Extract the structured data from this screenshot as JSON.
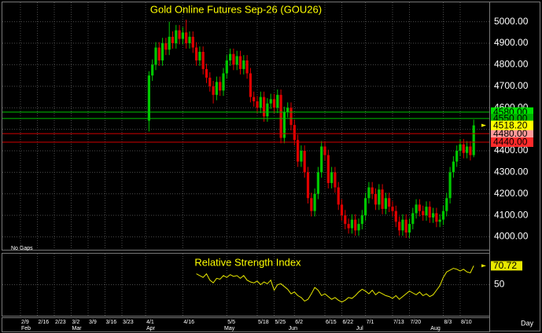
{
  "chart_data": [
    {
      "type": "candlestick",
      "title": "Gold Online Futures Sep-26 (GOU26)",
      "note": "No Gaps",
      "x_label": "Day",
      "categories": [
        "2/9",
        null,
        null,
        null,
        null,
        "2/16",
        null,
        null,
        null,
        null,
        "2/23",
        null,
        null,
        null,
        null,
        "3/2",
        null,
        null,
        null,
        null,
        "3/9",
        null,
        null,
        null,
        null,
        "3/16",
        null,
        null,
        null,
        null,
        "3/23",
        null,
        null,
        null,
        null,
        null,
        null,
        "4/1",
        null,
        null,
        null,
        null,
        null,
        null,
        null,
        null,
        null,
        null,
        "4/16",
        null,
        null,
        null,
        null,
        null,
        null,
        null,
        null,
        null,
        null,
        null,
        null,
        "5/5",
        null,
        null,
        null,
        null,
        null,
        null,
        null,
        null,
        "5/18",
        null,
        null,
        null,
        null,
        "5/25",
        null,
        null,
        null,
        null,
        null,
        "6/2",
        null,
        null,
        null,
        null,
        null,
        null,
        null,
        null,
        "6/15",
        null,
        null,
        null,
        null,
        "6/22",
        null,
        null,
        null,
        null,
        null,
        null,
        "7/1",
        null,
        null,
        null,
        null,
        null,
        null,
        null,
        "7/13",
        null,
        null,
        null,
        null,
        "7/20",
        null,
        null,
        null,
        null,
        null,
        null,
        null,
        null,
        null,
        "8/3",
        null,
        null,
        null,
        null,
        "8/10",
        null,
        null,
        null,
        null
      ],
      "months": [
        "Feb",
        null,
        null,
        null,
        null,
        null,
        null,
        null,
        null,
        null,
        null,
        null,
        null,
        null,
        null,
        "Mar",
        null,
        null,
        null,
        null,
        null,
        null,
        null,
        null,
        null,
        null,
        null,
        null,
        null,
        null,
        null,
        null,
        null,
        null,
        null,
        null,
        null,
        "Apr",
        null,
        null,
        null,
        null,
        null,
        null,
        null,
        null,
        null,
        null,
        null,
        null,
        null,
        null,
        null,
        null,
        null,
        null,
        null,
        null,
        null,
        null,
        "May",
        null,
        null,
        null,
        null,
        null,
        null,
        null,
        null,
        null,
        null,
        null,
        null,
        null,
        null,
        null,
        null,
        null,
        null,
        "Jun",
        null,
        null,
        null,
        null,
        null,
        null,
        null,
        null,
        null,
        null,
        null,
        null,
        null,
        null,
        null,
        null,
        null,
        null,
        null,
        "Jul",
        null,
        null,
        null,
        null,
        null,
        null,
        null,
        null,
        null,
        null,
        null,
        null,
        null,
        null,
        null,
        null,
        null,
        null,
        null,
        null,
        null,
        "Aug",
        null,
        null,
        null,
        null,
        null,
        null,
        null,
        null,
        null
      ],
      "open": [
        null,
        null,
        null,
        null,
        null,
        null,
        null,
        null,
        null,
        null,
        null,
        null,
        null,
        null,
        null,
        null,
        null,
        null,
        null,
        null,
        null,
        null,
        null,
        null,
        null,
        null,
        null,
        null,
        null,
        null,
        null,
        null,
        null,
        null,
        null,
        null,
        null,
        null,
        4540,
        4750,
        4800,
        4880,
        4820,
        4900,
        4870,
        4930,
        4900,
        4960,
        4920,
        4950,
        4900,
        4930,
        4880,
        4820,
        4860,
        4780,
        4740,
        4700,
        4660,
        4720,
        4680,
        4760,
        4820,
        4850,
        4800,
        4840,
        4780,
        4820,
        4760,
        4650,
        4630,
        4600,
        4650,
        4560,
        4620,
        4640,
        4600,
        4660,
        4460,
        4580,
        4600,
        4520,
        4450,
        4350,
        4400,
        4300,
        4180,
        4120,
        4200,
        4300,
        4420,
        4380,
        4250,
        4300,
        4230,
        4150,
        4100,
        4060,
        4040,
        4080,
        4030,
        4060,
        4100,
        4180,
        4230,
        4200,
        4150,
        4220,
        4130,
        4180,
        4140,
        4120,
        4070,
        4030,
        4080,
        4020,
        4060,
        4110,
        4150,
        4120,
        4100,
        4140,
        4090,
        4110,
        4070,
        4080,
        4120,
        4180,
        4300,
        4350,
        4400,
        4430,
        4390,
        4420,
        4380
      ],
      "high": [
        null,
        null,
        null,
        null,
        null,
        null,
        null,
        null,
        null,
        null,
        null,
        null,
        null,
        null,
        null,
        null,
        null,
        null,
        null,
        null,
        null,
        null,
        null,
        null,
        null,
        null,
        null,
        null,
        null,
        null,
        null,
        null,
        null,
        null,
        null,
        null,
        null,
        null,
        4770,
        4825,
        4905,
        4905,
        4925,
        4925,
        5000,
        4955,
        4985,
        4985,
        4975,
        5010,
        4955,
        4955,
        4905,
        4885,
        4885,
        4805,
        4765,
        4725,
        4745,
        4745,
        4785,
        4845,
        4875,
        4875,
        4865,
        4865,
        4845,
        4845,
        4785,
        4675,
        4655,
        4675,
        4675,
        4645,
        4665,
        4665,
        4685,
        4685,
        4605,
        4625,
        4625,
        4545,
        4475,
        4425,
        4425,
        4325,
        4205,
        4225,
        4325,
        4445,
        4445,
        4405,
        4325,
        4325,
        4255,
        4175,
        4125,
        4085,
        4105,
        4105,
        4085,
        4125,
        4205,
        4255,
        4255,
        4225,
        4245,
        4245,
        4205,
        4205,
        4165,
        4145,
        4095,
        4105,
        4105,
        4085,
        4135,
        4175,
        4175,
        4145,
        4165,
        4165,
        4135,
        4135,
        4105,
        4145,
        4205,
        4325,
        4375,
        4425,
        4455,
        4455,
        4445,
        4445,
        4545
      ],
      "low": [
        null,
        null,
        null,
        null,
        null,
        null,
        null,
        null,
        null,
        null,
        null,
        null,
        null,
        null,
        null,
        null,
        null,
        null,
        null,
        null,
        null,
        null,
        null,
        null,
        null,
        null,
        null,
        null,
        null,
        null,
        null,
        null,
        null,
        null,
        null,
        null,
        null,
        null,
        4490,
        4725,
        4775,
        4795,
        4795,
        4845,
        4845,
        4875,
        4875,
        4895,
        4895,
        4875,
        4875,
        4855,
        4795,
        4795,
        4755,
        4715,
        4675,
        4620,
        4635,
        4655,
        4655,
        4735,
        4795,
        4775,
        4775,
        4755,
        4755,
        4735,
        4625,
        4605,
        4575,
        4575,
        4535,
        4535,
        4595,
        4575,
        4575,
        4435,
        4435,
        4555,
        4495,
        4425,
        4325,
        4325,
        4275,
        4155,
        4095,
        4095,
        4175,
        4275,
        4355,
        4225,
        4225,
        4205,
        4125,
        4075,
        4035,
        4015,
        4015,
        4005,
        4005,
        4035,
        4075,
        4155,
        4175,
        4125,
        4125,
        4105,
        4105,
        4115,
        4095,
        4045,
        4005,
        4005,
        3995,
        3995,
        4035,
        4085,
        4095,
        4075,
        4075,
        4065,
        4065,
        4045,
        4045,
        4055,
        4095,
        4155,
        4275,
        4325,
        4375,
        4365,
        4365,
        4355,
        4370
      ],
      "close": [
        null,
        null,
        null,
        null,
        null,
        null,
        null,
        null,
        null,
        null,
        null,
        null,
        null,
        null,
        null,
        null,
        null,
        null,
        null,
        null,
        null,
        null,
        null,
        null,
        null,
        null,
        null,
        null,
        null,
        null,
        null,
        null,
        null,
        null,
        null,
        null,
        null,
        null,
        4750,
        4800,
        4880,
        4820,
        4900,
        4870,
        4930,
        4900,
        4960,
        4920,
        4950,
        4900,
        4930,
        4880,
        4820,
        4860,
        4780,
        4740,
        4700,
        4660,
        4720,
        4680,
        4760,
        4820,
        4850,
        4800,
        4840,
        4780,
        4820,
        4760,
        4650,
        4630,
        4600,
        4650,
        4560,
        4620,
        4640,
        4600,
        4660,
        4460,
        4580,
        4600,
        4520,
        4450,
        4350,
        4400,
        4300,
        4180,
        4120,
        4200,
        4300,
        4420,
        4380,
        4250,
        4300,
        4230,
        4150,
        4100,
        4060,
        4040,
        4080,
        4030,
        4060,
        4100,
        4180,
        4230,
        4200,
        4150,
        4220,
        4130,
        4180,
        4140,
        4120,
        4070,
        4030,
        4080,
        4020,
        4060,
        4110,
        4150,
        4120,
        4100,
        4140,
        4090,
        4110,
        4070,
        4080,
        4120,
        4180,
        4300,
        4350,
        4400,
        4430,
        4390,
        4420,
        4380,
        4518.2
      ],
      "up_color": "#00c800",
      "down_color": "#e00000",
      "ylim": [
        3940,
        5090
      ],
      "yticks": [
        {
          "value": 4000,
          "label": "4000.00"
        },
        {
          "value": 4100,
          "label": "4100.00"
        },
        {
          "value": 4200,
          "label": "4200.00"
        },
        {
          "value": 4300,
          "label": "4300.00"
        },
        {
          "value": 4400,
          "label": "4400.00"
        },
        {
          "value": 4500,
          "label": "4500.00"
        },
        {
          "value": 4600,
          "label": "4600.00"
        },
        {
          "value": 4700,
          "label": "4700.00"
        },
        {
          "value": 4800,
          "label": "4800.00"
        },
        {
          "value": 4900,
          "label": "4900.00"
        },
        {
          "value": 5000,
          "label": "5000.00"
        }
      ],
      "grid": true,
      "reference_lines": [
        {
          "value": 4580,
          "label": "4580.00",
          "color": "#00c000",
          "box_color": "#00e000"
        },
        {
          "value": 4550,
          "label": "4550.00",
          "color": "#00c000",
          "box_color": "#00b000"
        },
        {
          "value": 4480,
          "label": "4480.00",
          "color": "#d00000",
          "box_color": "#ff9a9a"
        },
        {
          "value": 4440,
          "label": "4440.00",
          "color": "#d00000",
          "box_color": "#ff2a2a"
        }
      ],
      "last_price": {
        "value": 4518.2,
        "label": "4518.20",
        "color": "#ffff00"
      }
    },
    {
      "type": "line",
      "title": "Relative Strength Index",
      "values": [
        null,
        null,
        null,
        null,
        null,
        null,
        null,
        null,
        null,
        null,
        null,
        null,
        null,
        null,
        null,
        null,
        null,
        null,
        null,
        null,
        null,
        null,
        null,
        null,
        null,
        null,
        null,
        null,
        null,
        null,
        null,
        null,
        null,
        null,
        null,
        null,
        null,
        null,
        null,
        null,
        null,
        null,
        null,
        null,
        null,
        null,
        null,
        null,
        null,
        null,
        null,
        null,
        62,
        60,
        58,
        62,
        55,
        52,
        57,
        56,
        60,
        58,
        61,
        59,
        60,
        57,
        60,
        55,
        53,
        52,
        54,
        50,
        53,
        51,
        55,
        44,
        50,
        51,
        48,
        45,
        40,
        42,
        38,
        36,
        32,
        34,
        40,
        47,
        44,
        38,
        40,
        37,
        34,
        36,
        33,
        31,
        33,
        36,
        35,
        38,
        42,
        45,
        43,
        40,
        44,
        39,
        42,
        40,
        38,
        37,
        35,
        38,
        34,
        37,
        40,
        43,
        41,
        39,
        42,
        38,
        40,
        37,
        39,
        44,
        49,
        58,
        64,
        66,
        68,
        67,
        65,
        67,
        64,
        63,
        70.72
      ],
      "color": "#e8e800",
      "ylim": [
        16,
        84
      ],
      "yticks": [
        50
      ],
      "grid": true
    }
  ]
}
